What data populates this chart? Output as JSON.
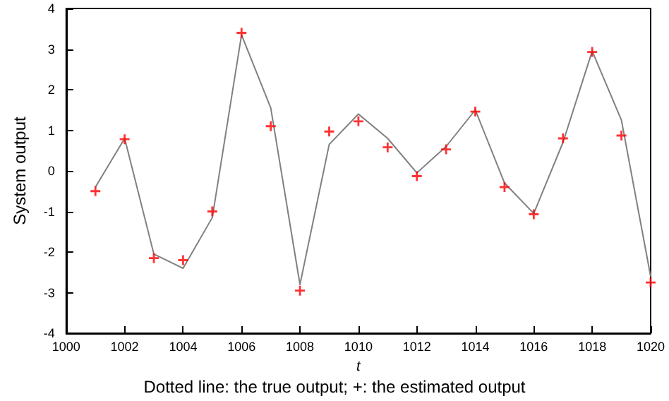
{
  "chart_data": {
    "type": "line",
    "xlabel": "t",
    "ylabel": "System output",
    "annotations": [
      "Dotted line: the true output; +: the estimated output"
    ],
    "x": [
      1001,
      1002,
      1003,
      1004,
      1005,
      1006,
      1007,
      1008,
      1009,
      1010,
      1011,
      1012,
      1013,
      1014,
      1015,
      1016,
      1017,
      1018,
      1019,
      1020
    ],
    "series": [
      {
        "color": "#808080",
        "marker": "none",
        "line_style": "solid",
        "values": [
          -0.4,
          0.8,
          -2.05,
          -2.4,
          -1.15,
          3.35,
          1.55,
          -2.8,
          0.65,
          1.4,
          0.8,
          -0.05,
          0.6,
          1.5,
          -0.3,
          -1.05,
          0.7,
          2.95,
          1.25,
          -2.6
        ]
      },
      {
        "type": "scatter",
        "color": "#ff0000",
        "marker": "cross",
        "values": [
          -0.5,
          0.78,
          -2.15,
          -2.2,
          -1.0,
          3.4,
          1.1,
          -2.95,
          0.97,
          1.22,
          0.58,
          -0.13,
          0.53,
          1.46,
          -0.4,
          -1.07,
          0.8,
          2.93,
          0.87,
          -2.75
        ]
      }
    ],
    "xlim": [
      1000,
      1020
    ],
    "xticks": [
      1000,
      1002,
      1004,
      1006,
      1008,
      1010,
      1012,
      1014,
      1016,
      1018,
      1020
    ],
    "ylim": [
      -4,
      4
    ],
    "yticks": [
      -4,
      -3,
      -2,
      -1,
      0,
      1,
      2,
      3,
      4
    ],
    "grid": false
  }
}
